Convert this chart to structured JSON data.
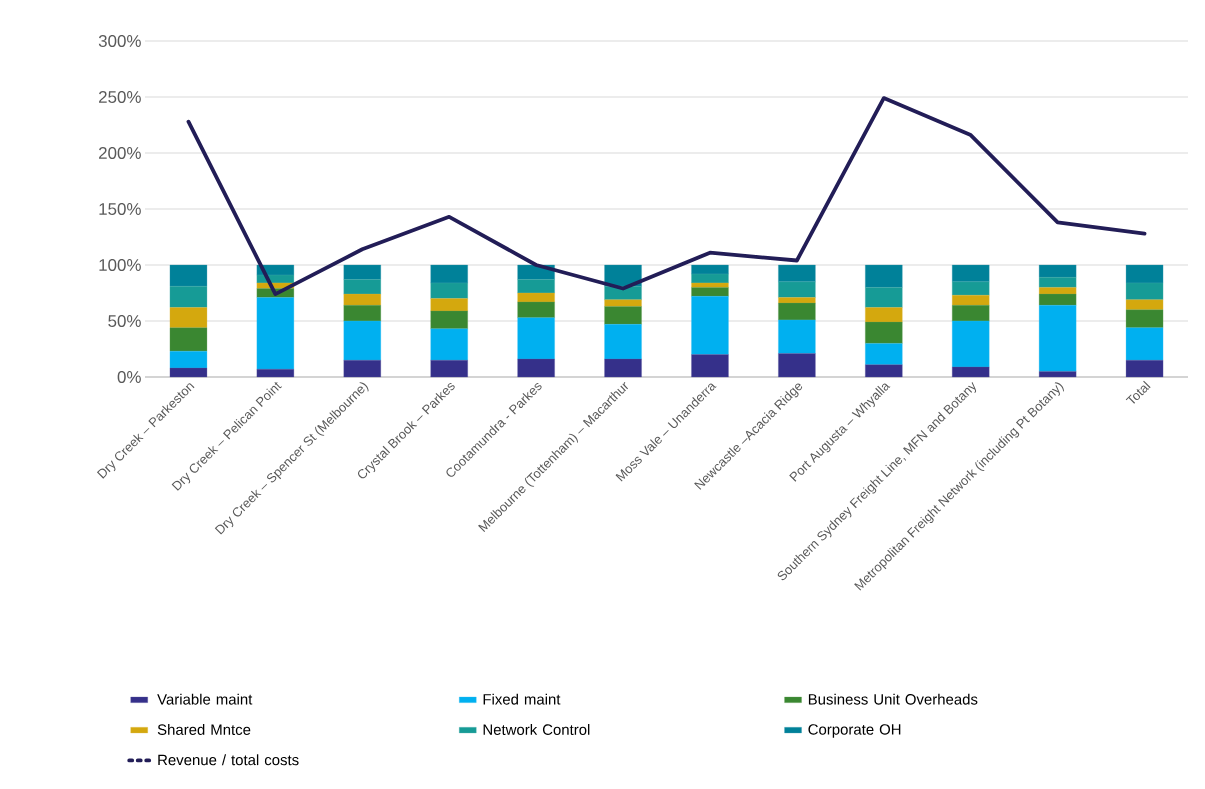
{
  "chart_data": {
    "type": "bar",
    "stacked": true,
    "categories": [
      "Dry Creek – Parkeston",
      "Dry Creek – Pelican Point",
      "Dry Creek – Spencer St (Melbourne)",
      "Crystal Brook – Parkes",
      "Cootamundra - Parkes",
      "Melbourne (Tottenham) – Macarthur",
      "Moss Vale – Unanderra",
      "Newcastle –Acacia Ridge",
      "Port Augusta – Whyalla",
      "Southern Sydney Freight Line, MFN and Botany",
      "Metropolitan Freight Network (including Pt Botany)",
      "Total"
    ],
    "series": [
      {
        "name": "Variable maint",
        "color": "#35308a",
        "values": [
          8,
          7,
          15,
          15,
          16,
          16,
          20,
          21,
          11,
          9,
          5,
          15
        ]
      },
      {
        "name": "Fixed maint",
        "color": "#00b0f0",
        "values": [
          15,
          64,
          35,
          28,
          37,
          31,
          52,
          30,
          19,
          41,
          59,
          29
        ]
      },
      {
        "name": "Business Unit Overheads",
        "color": "#3a8731",
        "values": [
          21,
          8,
          14,
          16,
          14,
          16,
          8,
          15,
          19,
          14,
          10,
          16
        ]
      },
      {
        "name": "Shared Mntce",
        "color": "#d4a80e",
        "values": [
          18,
          5,
          10,
          11,
          8,
          6,
          4,
          5,
          13,
          9,
          6,
          9
        ]
      },
      {
        "name": "Network Control",
        "color": "#169b96",
        "values": [
          19,
          7,
          13,
          14,
          12,
          12,
          8,
          14,
          18,
          12,
          9,
          15
        ]
      },
      {
        "name": "Corporate OH",
        "color": "#008199",
        "values": [
          19,
          9,
          13,
          16,
          13,
          19,
          8,
          15,
          20,
          15,
          11,
          16
        ]
      },
      {
        "name": "Revenue / total costs",
        "color": "#221d57",
        "type": "line",
        "values": [
          228,
          74,
          114,
          143,
          100,
          79,
          111,
          104,
          249,
          216,
          138,
          128
        ]
      }
    ],
    "ylim": [
      0,
      300
    ],
    "yticks": [
      {
        "value": 0,
        "label": "0%"
      },
      {
        "value": 50,
        "label": "50%"
      },
      {
        "value": 100,
        "label": "100%"
      },
      {
        "value": 150,
        "label": "150%"
      },
      {
        "value": 200,
        "label": "200%"
      },
      {
        "value": 250,
        "label": "250%"
      },
      {
        "value": 300,
        "label": "300%"
      }
    ],
    "grid": "y",
    "legend": "bottom",
    "marker": "none",
    "line_style": "solid"
  }
}
